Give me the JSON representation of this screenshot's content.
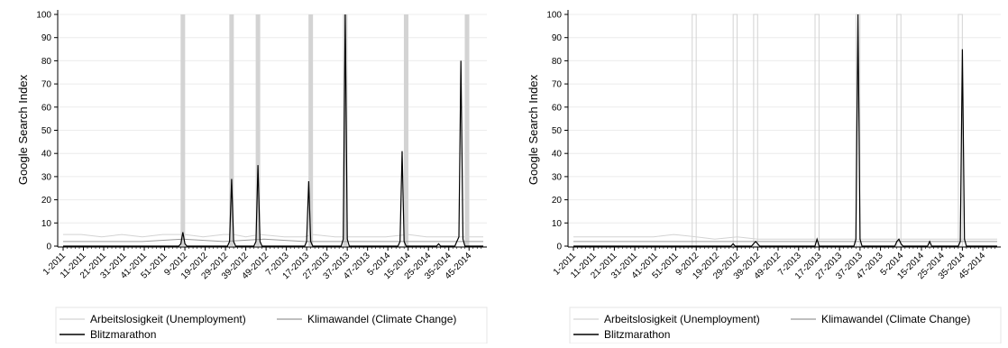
{
  "chart_data": [
    {
      "type": "line",
      "ylabel": "Google Search Index",
      "ylim": [
        0,
        100
      ],
      "yticks": [
        0,
        10,
        20,
        30,
        40,
        50,
        60,
        70,
        80,
        90,
        100
      ],
      "x_tick_labels": [
        "1-2011",
        "11-2011",
        "21-2011",
        "31-2011",
        "41-2011",
        "51-2011",
        "9-2012",
        "19-2012",
        "29-2012",
        "39-2012",
        "49-2012",
        "7-2013",
        "17-2013",
        "27-2013",
        "37-2013",
        "47-2013",
        "5-2014",
        "15-2014",
        "25-2014",
        "35-2014",
        "45-2014"
      ],
      "grid": true,
      "legend_position": "bottom",
      "x_unit": "week index (week 1 = 1-2011)",
      "x_range": [
        1,
        208
      ],
      "series": [
        {
          "name": "Arbeitslosigkeit (Unemployment)",
          "color": "#d3d3d3",
          "style": "bars-and-line",
          "points": [
            [
              1,
              5
            ],
            [
              10,
              5
            ],
            [
              20,
              4
            ],
            [
              30,
              5
            ],
            [
              40,
              4
            ],
            [
              50,
              5
            ],
            [
              60,
              100
            ],
            [
              61,
              5
            ],
            [
              70,
              4
            ],
            [
              80,
              5
            ],
            [
              84,
              100
            ],
            [
              85,
              5
            ],
            [
              91,
              4
            ],
            [
              97,
              100
            ],
            [
              98,
              5
            ],
            [
              110,
              4
            ],
            [
              120,
              4
            ],
            [
              123,
              100
            ],
            [
              124,
              5
            ],
            [
              135,
              4
            ],
            [
              140,
              100
            ],
            [
              141,
              4
            ],
            [
              150,
              4
            ],
            [
              160,
              4
            ],
            [
              170,
              100
            ],
            [
              171,
              5
            ],
            [
              180,
              4
            ],
            [
              190,
              4
            ],
            [
              200,
              100
            ],
            [
              201,
              4
            ],
            [
              208,
              4
            ]
          ]
        },
        {
          "name": "Klimawandel (Climate Change)",
          "color": "#999999",
          "style": "line",
          "points": [
            [
              1,
              2
            ],
            [
              20,
              2
            ],
            [
              40,
              2
            ],
            [
              60,
              3
            ],
            [
              80,
              2
            ],
            [
              100,
              3
            ],
            [
              120,
              2
            ],
            [
              140,
              2
            ],
            [
              160,
              2
            ],
            [
              180,
              2
            ],
            [
              208,
              2
            ]
          ]
        },
        {
          "name": "Blitzmarathon",
          "color": "#000000",
          "style": "line",
          "points": [
            [
              1,
              0
            ],
            [
              58,
              0
            ],
            [
              59,
              1
            ],
            [
              60,
              6
            ],
            [
              61,
              1
            ],
            [
              62,
              0
            ],
            [
              82,
              0
            ],
            [
              83,
              2
            ],
            [
              84,
              29
            ],
            [
              85,
              2
            ],
            [
              86,
              0
            ],
            [
              95,
              0
            ],
            [
              96,
              2
            ],
            [
              97,
              35
            ],
            [
              98,
              2
            ],
            [
              99,
              0
            ],
            [
              120,
              0
            ],
            [
              121,
              2
            ],
            [
              122,
              28
            ],
            [
              123,
              2
            ],
            [
              124,
              0
            ],
            [
              138,
              0
            ],
            [
              139,
              3
            ],
            [
              140,
              100
            ],
            [
              141,
              3
            ],
            [
              142,
              0
            ],
            [
              166,
              0
            ],
            [
              167,
              2
            ],
            [
              168,
              41
            ],
            [
              169,
              2
            ],
            [
              170,
              0
            ],
            [
              185,
              0
            ],
            [
              186,
              1
            ],
            [
              187,
              0
            ],
            [
              194,
              0
            ],
            [
              195,
              2
            ],
            [
              196,
              4
            ],
            [
              197,
              80
            ],
            [
              198,
              3
            ],
            [
              199,
              0
            ],
            [
              208,
              0
            ]
          ]
        }
      ],
      "legend": {
        "row1": [
          "Arbeitslosigkeit (Unemployment)",
          "Klimawandel (Climate Change)"
        ],
        "row2": [
          "Blitzmarathon"
        ]
      }
    },
    {
      "type": "line",
      "ylabel": "Google Search Index",
      "ylim": [
        0,
        100
      ],
      "yticks": [
        0,
        10,
        20,
        30,
        40,
        50,
        60,
        70,
        80,
        90,
        100
      ],
      "x_tick_labels": [
        "1-2011",
        "11-2011",
        "21-2011",
        "31-2011",
        "41-2011",
        "51-2011",
        "9-2012",
        "19-2012",
        "29-2012",
        "39-2012",
        "49-2012",
        "7-2013",
        "17-2013",
        "27-2013",
        "37-2013",
        "47-2013",
        "5-2014",
        "15-2014",
        "25-2014",
        "35-2014",
        "45-2014"
      ],
      "grid": true,
      "legend_position": "bottom",
      "x_unit": "week index (week 1 = 1-2011)",
      "x_range": [
        1,
        208
      ],
      "series": [
        {
          "name": "Arbeitslosigkeit (Unemployment)",
          "color": "#d3d3d3",
          "style": "outlined-bars-and-line",
          "points": [
            [
              1,
              4
            ],
            [
              10,
              4
            ],
            [
              20,
              4
            ],
            [
              30,
              4
            ],
            [
              40,
              4
            ],
            [
              50,
              5
            ],
            [
              60,
              100
            ],
            [
              61,
              4
            ],
            [
              70,
              3
            ],
            [
              80,
              100
            ],
            [
              81,
              4
            ],
            [
              90,
              100
            ],
            [
              91,
              3
            ],
            [
              100,
              3
            ],
            [
              110,
              3
            ],
            [
              120,
              100
            ],
            [
              121,
              3
            ],
            [
              130,
              3
            ],
            [
              140,
              100
            ],
            [
              141,
              3
            ],
            [
              150,
              3
            ],
            [
              160,
              100
            ],
            [
              161,
              3
            ],
            [
              170,
              3
            ],
            [
              180,
              3
            ],
            [
              190,
              100
            ],
            [
              191,
              3
            ],
            [
              200,
              3
            ],
            [
              208,
              3
            ]
          ]
        },
        {
          "name": "Klimawandel (Climate Change)",
          "color": "#999999",
          "style": "line",
          "points": [
            [
              1,
              2
            ],
            [
              20,
              2
            ],
            [
              40,
              2
            ],
            [
              60,
              2
            ],
            [
              80,
              2
            ],
            [
              100,
              2
            ],
            [
              120,
              2
            ],
            [
              140,
              2
            ],
            [
              160,
              2
            ],
            [
              180,
              2
            ],
            [
              208,
              2
            ]
          ]
        },
        {
          "name": "Blitzmarathon",
          "color": "#000000",
          "style": "line",
          "points": [
            [
              1,
              0
            ],
            [
              78,
              0
            ],
            [
              79,
              1
            ],
            [
              80,
              0
            ],
            [
              88,
              0
            ],
            [
              89,
              1
            ],
            [
              90,
              2
            ],
            [
              91,
              1
            ],
            [
              92,
              0
            ],
            [
              119,
              0
            ],
            [
              120,
              3
            ],
            [
              121,
              0
            ],
            [
              138,
              0
            ],
            [
              139,
              3
            ],
            [
              140,
              100
            ],
            [
              141,
              3
            ],
            [
              142,
              0
            ],
            [
              158,
              0
            ],
            [
              159,
              2
            ],
            [
              160,
              3
            ],
            [
              161,
              1
            ],
            [
              162,
              0
            ],
            [
              174,
              0
            ],
            [
              175,
              2
            ],
            [
              176,
              0
            ],
            [
              189,
              0
            ],
            [
              190,
              2
            ],
            [
              191,
              85
            ],
            [
              192,
              3
            ],
            [
              193,
              0
            ],
            [
              208,
              0
            ]
          ]
        }
      ],
      "legend": {
        "row1": [
          "Arbeitslosigkeit (Unemployment)",
          "Klimawandel (Climate Change)"
        ],
        "row2": [
          "Blitzmarathon"
        ]
      }
    }
  ]
}
